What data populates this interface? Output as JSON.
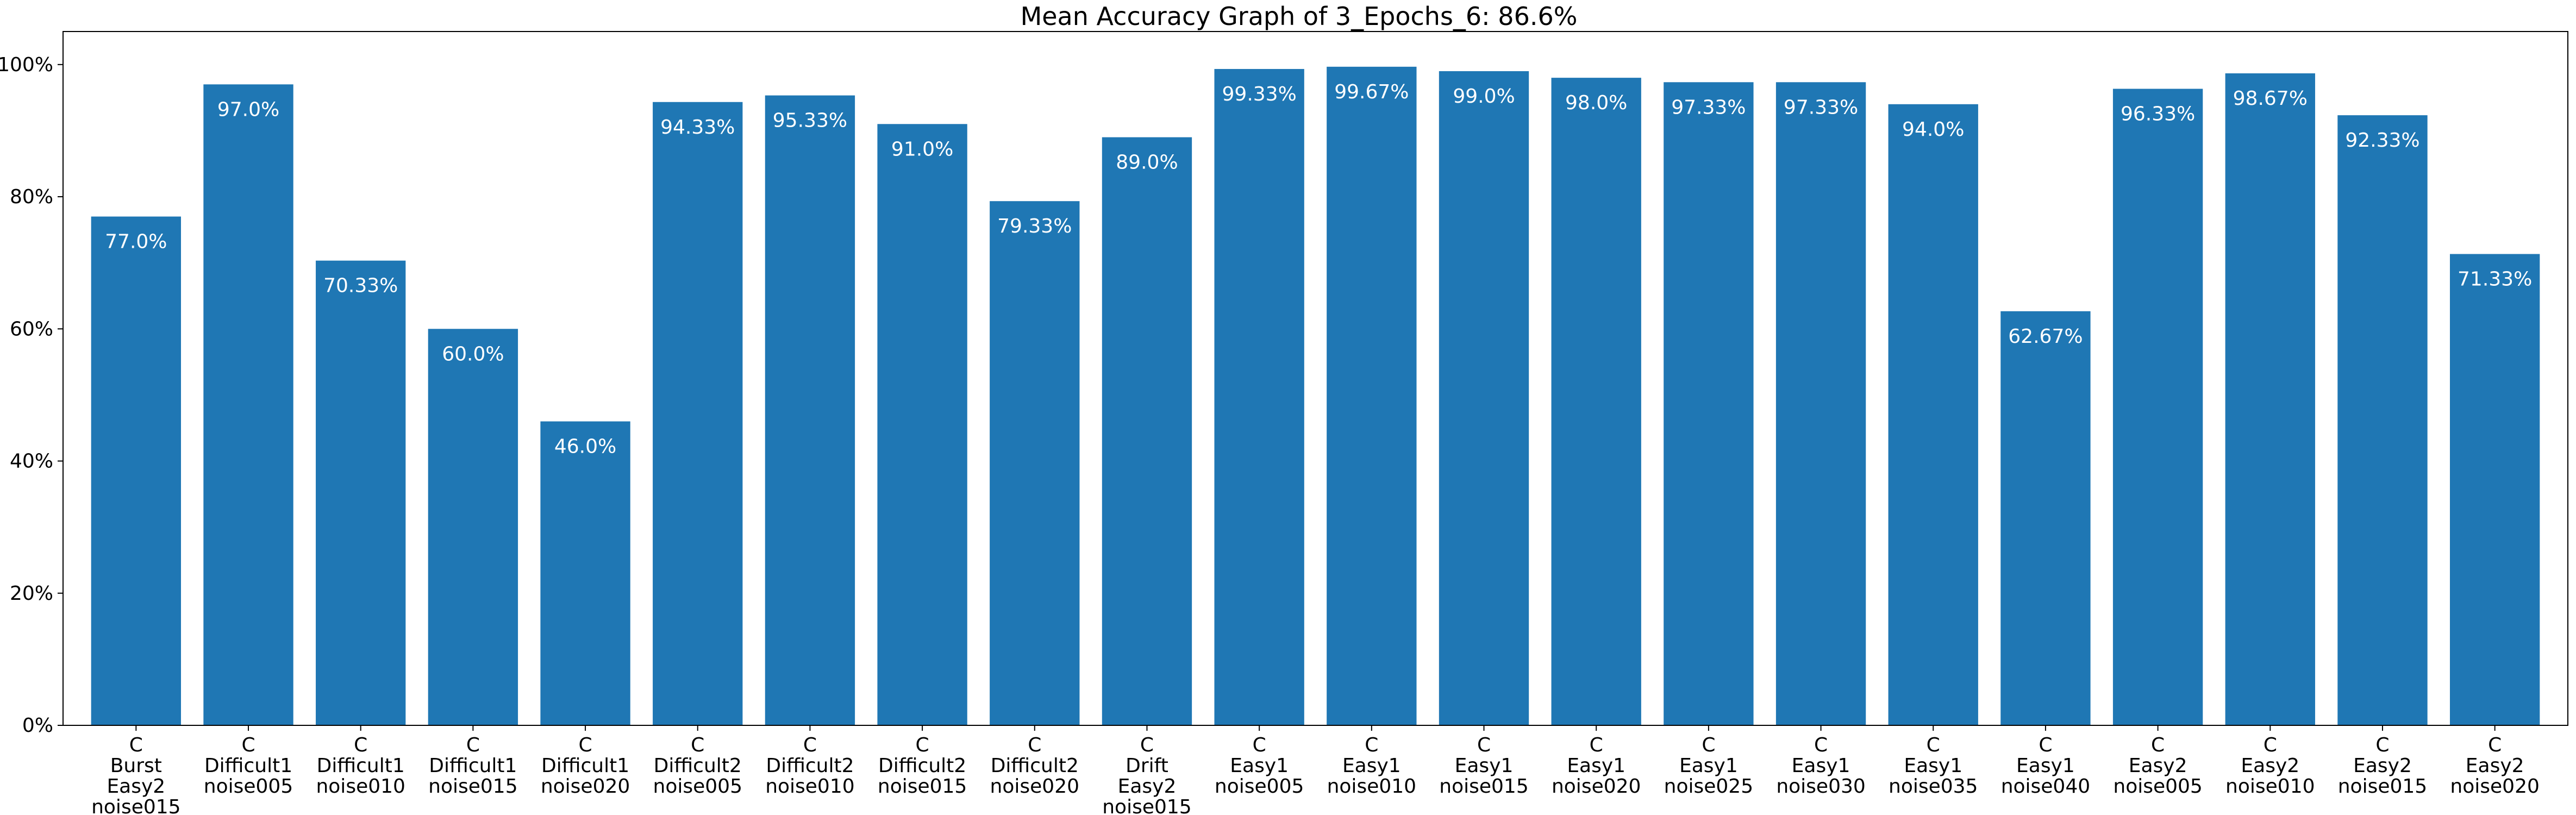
{
  "chart_data": {
    "type": "bar",
    "title": "Mean Accuracy Graph of 3_Epochs_6: 86.6%",
    "xlabel": "",
    "ylabel": "",
    "ylim": [
      0,
      105
    ],
    "yticks": [
      0,
      20,
      40,
      60,
      80,
      100
    ],
    "ytick_labels": [
      "0%",
      "20%",
      "40%",
      "60%",
      "80%",
      "100%"
    ],
    "grid": false,
    "bar_color": "#1f77b4",
    "label_color": "#ffffff",
    "categories": [
      [
        "C",
        "Burst",
        "Easy2",
        "noise015"
      ],
      [
        "C",
        "Difficult1",
        "noise005"
      ],
      [
        "C",
        "Difficult1",
        "noise010"
      ],
      [
        "C",
        "Difficult1",
        "noise015"
      ],
      [
        "C",
        "Difficult1",
        "noise020"
      ],
      [
        "C",
        "Difficult2",
        "noise005"
      ],
      [
        "C",
        "Difficult2",
        "noise010"
      ],
      [
        "C",
        "Difficult2",
        "noise015"
      ],
      [
        "C",
        "Difficult2",
        "noise020"
      ],
      [
        "C",
        "Drift",
        "Easy2",
        "noise015"
      ],
      [
        "C",
        "Easy1",
        "noise005"
      ],
      [
        "C",
        "Easy1",
        "noise010"
      ],
      [
        "C",
        "Easy1",
        "noise015"
      ],
      [
        "C",
        "Easy1",
        "noise020"
      ],
      [
        "C",
        "Easy1",
        "noise025"
      ],
      [
        "C",
        "Easy1",
        "noise030"
      ],
      [
        "C",
        "Easy1",
        "noise035"
      ],
      [
        "C",
        "Easy1",
        "noise040"
      ],
      [
        "C",
        "Easy2",
        "noise005"
      ],
      [
        "C",
        "Easy2",
        "noise010"
      ],
      [
        "C",
        "Easy2",
        "noise015"
      ],
      [
        "C",
        "Easy2",
        "noise020"
      ]
    ],
    "values": [
      77.0,
      97.0,
      70.33,
      60.0,
      46.0,
      94.33,
      95.33,
      91.0,
      79.33,
      89.0,
      99.33,
      99.67,
      99.0,
      98.0,
      97.33,
      97.33,
      94.0,
      62.67,
      96.33,
      98.67,
      92.33,
      71.33
    ],
    "value_labels": [
      "77.0%",
      "97.0%",
      "70.33%",
      "60.0%",
      "46.0%",
      "94.33%",
      "95.33%",
      "91.0%",
      "79.33%",
      "89.0%",
      "99.33%",
      "99.67%",
      "99.0%",
      "98.0%",
      "97.33%",
      "97.33%",
      "94.0%",
      "62.67%",
      "96.33%",
      "98.67%",
      "92.33%",
      "71.33%"
    ]
  }
}
